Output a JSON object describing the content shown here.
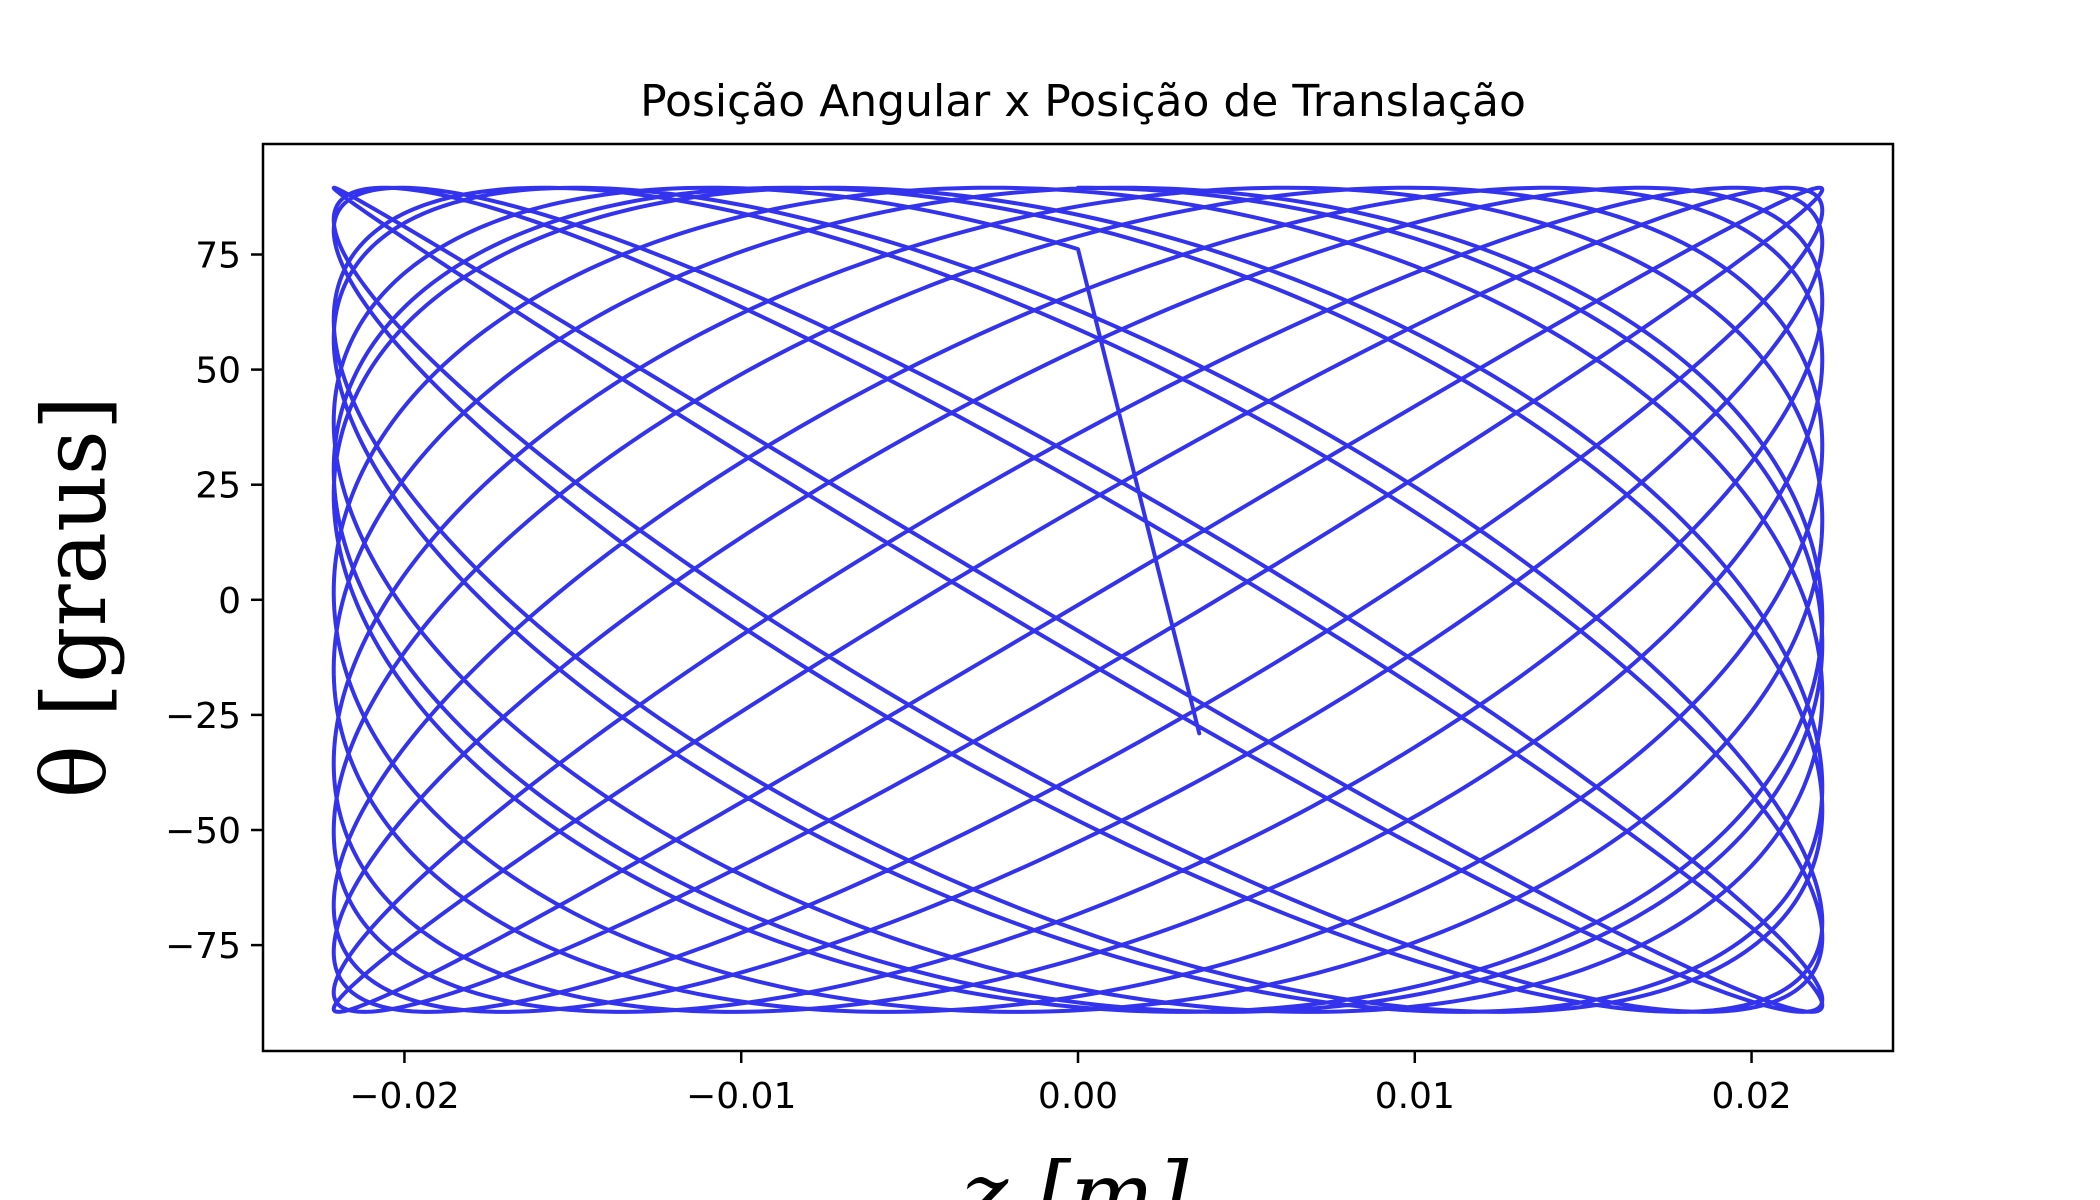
{
  "chart_data": {
    "type": "line",
    "title": "Posição Angular x Posição de Translação",
    "xlabel": "z [m]",
    "ylabel": "θ [graus]",
    "xlim": [
      -0.0242,
      0.0242
    ],
    "ylim": [
      -98,
      99
    ],
    "xticks": [
      -0.02,
      -0.01,
      0.0,
      0.01,
      0.02
    ],
    "xtick_labels": [
      "−0.02",
      "−0.01",
      "0.00",
      "0.01",
      "0.02"
    ],
    "yticks": [
      -75,
      -50,
      -25,
      0,
      25,
      50,
      75
    ],
    "ytick_labels": [
      "−75",
      "−50",
      "−25",
      "0",
      "25",
      "50",
      "75"
    ],
    "grid": false,
    "series": [
      {
        "color": "#3333ee",
        "curve": "Lissajous-like trajectory with slowly drifting phase, bounded by a diamond envelope",
        "z_amplitude": 0.0221,
        "theta_amplitude_deg": 89.5,
        "z_frequency": 1.0,
        "theta_frequency": 1.068,
        "phase_start": 0.0,
        "periods": 16,
        "start": {
          "z": 0.0036,
          "theta": -29
        },
        "shape": [
          {
            "z": 0.0,
            "theta": 89.5
          },
          {
            "z": 0.0221,
            "theta": 0.0
          },
          {
            "z": 0.0,
            "theta": -89.5
          },
          {
            "z": -0.0221,
            "theta": 0.0
          }
        ]
      }
    ]
  }
}
